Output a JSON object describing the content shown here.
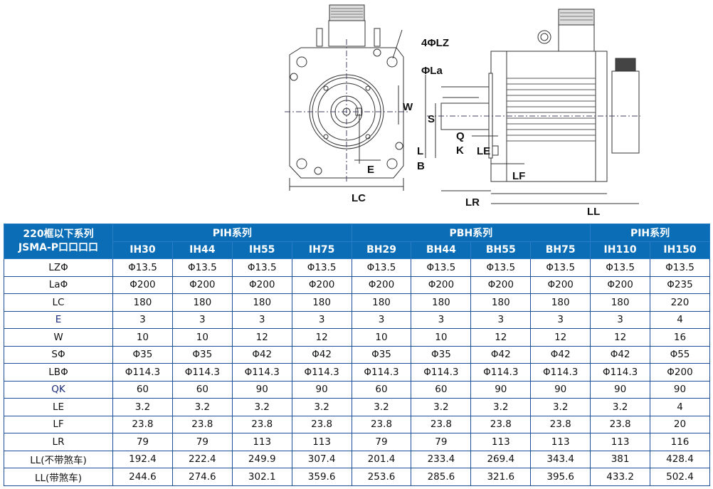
{
  "drawing": {
    "labels": {
      "lz": "4ΦLZ",
      "la": "ΦLa",
      "w": "W",
      "e": "E",
      "lc": "LC",
      "s": "S",
      "q": "Q",
      "k": "K",
      "le": "LE",
      "l": "L",
      "b": "B",
      "lf": "LF",
      "lr": "LR",
      "ll": "LL"
    }
  },
  "table": {
    "corner_line1": "220框以下系列",
    "corner_line2": "JSMA-P口口口口",
    "groups": [
      {
        "label": "PIH系列",
        "span": 4
      },
      {
        "label": "PBH系列",
        "span": 4
      },
      {
        "label": "PIH系列",
        "span": 2
      }
    ],
    "models": [
      "IH30",
      "IH44",
      "IH55",
      "IH75",
      "BH29",
      "BH44",
      "BH55",
      "BH75",
      "IH110",
      "IH150"
    ],
    "rows": [
      {
        "param": "LZΦ",
        "values": [
          "Φ13.5",
          "Φ13.5",
          "Φ13.5",
          "Φ13.5",
          "Φ13.5",
          "Φ13.5",
          "Φ13.5",
          "Φ13.5",
          "Φ13.5",
          "Φ13.5"
        ]
      },
      {
        "param": "LaΦ",
        "values": [
          "Φ200",
          "Φ200",
          "Φ200",
          "Φ200",
          "Φ200",
          "Φ200",
          "Φ200",
          "Φ200",
          "Φ200",
          "Φ235"
        ]
      },
      {
        "param": "LC",
        "values": [
          "180",
          "180",
          "180",
          "180",
          "180",
          "180",
          "180",
          "180",
          "180",
          "220"
        ]
      },
      {
        "param": "E",
        "values": [
          "3",
          "3",
          "3",
          "3",
          "3",
          "3",
          "3",
          "3",
          "3",
          "4"
        ]
      },
      {
        "param": "W",
        "values": [
          "10",
          "10",
          "12",
          "12",
          "10",
          "10",
          "12",
          "12",
          "12",
          "16"
        ]
      },
      {
        "param": "SΦ",
        "values": [
          "Φ35",
          "Φ35",
          "Φ42",
          "Φ42",
          "Φ35",
          "Φ35",
          "Φ42",
          "Φ42",
          "Φ42",
          "Φ55"
        ]
      },
      {
        "param": "LBΦ",
        "values": [
          "Φ114.3",
          "Φ114.3",
          "Φ114.3",
          "Φ114.3",
          "Φ114.3",
          "Φ114.3",
          "Φ114.3",
          "Φ114.3",
          "Φ114.3",
          "Φ200"
        ]
      },
      {
        "param": "QK",
        "values": [
          "60",
          "60",
          "90",
          "90",
          "60",
          "60",
          "90",
          "90",
          "90",
          "90"
        ]
      },
      {
        "param": "LE",
        "values": [
          "3.2",
          "3.2",
          "3.2",
          "3.2",
          "3.2",
          "3.2",
          "3.2",
          "3.2",
          "3.2",
          "4"
        ]
      },
      {
        "param": "LF",
        "values": [
          "23.8",
          "23.8",
          "23.8",
          "23.8",
          "23.8",
          "23.8",
          "23.8",
          "23.8",
          "23.8",
          "20"
        ]
      },
      {
        "param": "LR",
        "values": [
          "79",
          "79",
          "113",
          "113",
          "79",
          "79",
          "113",
          "113",
          "113",
          "116"
        ]
      },
      {
        "param": "LL(不带煞车)",
        "values": [
          "192.4",
          "222.4",
          "249.9",
          "307.4",
          "201.4",
          "233.4",
          "269.4",
          "343.4",
          "381",
          "428.4"
        ]
      },
      {
        "param": "LL(带煞车)",
        "values": [
          "244.6",
          "274.6",
          "302.1",
          "359.6",
          "253.6",
          "285.6",
          "321.6",
          "395.6",
          "433.2",
          "502.4"
        ]
      }
    ]
  }
}
